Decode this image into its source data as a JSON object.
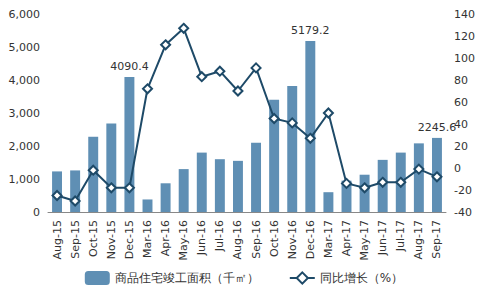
{
  "chart_data": {
    "type": "bar",
    "categories": [
      "Aug-15",
      "Sep-15",
      "Oct-15",
      "Nov-15",
      "Dec-15",
      "Mar-16",
      "Apr-16",
      "May-16",
      "Jun-16",
      "Jul-16",
      "Aug-16",
      "Sep-16",
      "Oct-16",
      "Nov-16",
      "Dec-16",
      "Mar-17",
      "Apr-17",
      "May-17",
      "Jun-17",
      "Jul-17",
      "Aug-17",
      "Sep-17"
    ],
    "series": [
      {
        "name": "商品住宅竣工面积（千㎡）",
        "type": "bar",
        "color": "#5f8fb4",
        "values": [
          1230,
          1260,
          2280,
          2680,
          4090.4,
          380,
          870,
          1300,
          1800,
          1600,
          1550,
          2100,
          3400,
          3820,
          5179.2,
          600,
          950,
          1130,
          1580,
          1800,
          2080,
          2245.6
        ],
        "value_labels": [
          null,
          null,
          null,
          null,
          "4090.4",
          null,
          null,
          null,
          null,
          null,
          null,
          null,
          null,
          null,
          "5179.2",
          null,
          null,
          null,
          null,
          null,
          null,
          "2245.6"
        ]
      },
      {
        "name": "同比增长（%）",
        "type": "line",
        "axis": "y2",
        "color": "#1e4a68",
        "marker": "diamond",
        "line_style": "solid",
        "values": [
          -25,
          -30,
          -2,
          -18,
          -18,
          72,
          112,
          127,
          83,
          88,
          70,
          91,
          45,
          41,
          27,
          50,
          -14,
          -18,
          -13,
          -13,
          -1,
          -8
        ]
      }
    ],
    "ylim": [
      0,
      6000
    ],
    "yticks": [
      0,
      1000,
      2000,
      3000,
      4000,
      5000,
      6000
    ],
    "y2lim": [
      -40,
      140
    ],
    "y2ticks": [
      -40,
      -20,
      0,
      20,
      40,
      60,
      80,
      100,
      120,
      140
    ],
    "grid": false,
    "legend": "bottom"
  }
}
